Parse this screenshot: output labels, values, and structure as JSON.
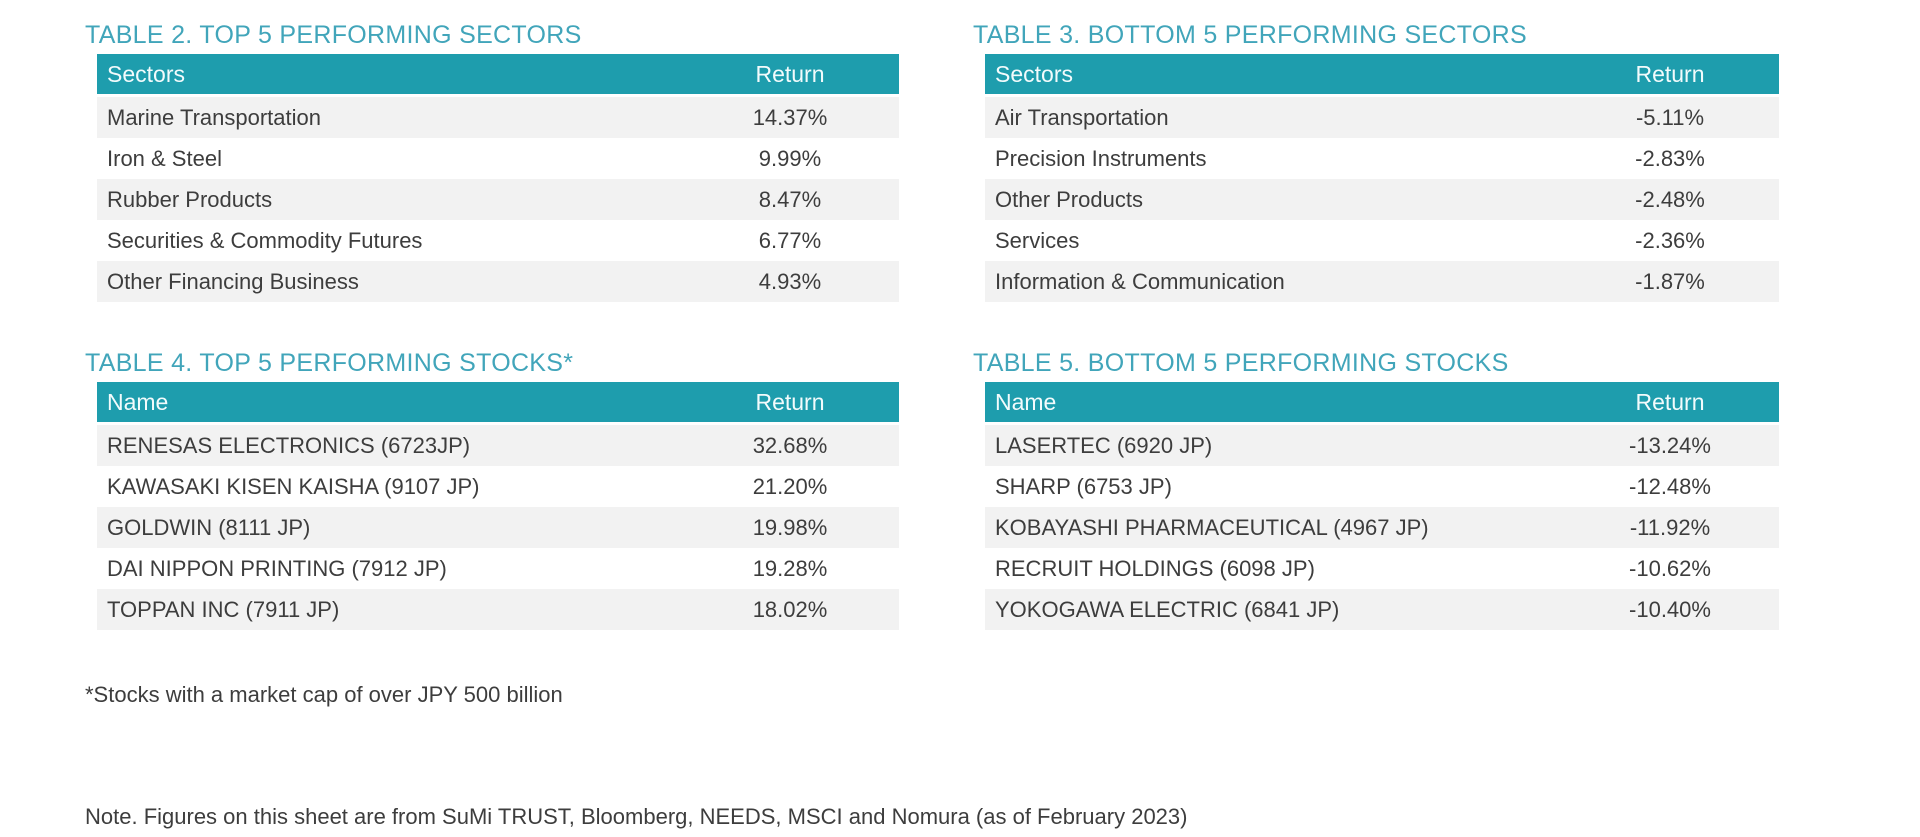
{
  "colors": {
    "header_bg": "#1E9DAD",
    "title": "#41A5BA",
    "row_alt": "#F2F2F2",
    "text": "#3D3D3D"
  },
  "tables": [
    {
      "title": "TABLE 2. TOP 5 PERFORMING SECTORS",
      "name_header": "Sectors",
      "return_header": "Return",
      "rows": [
        {
          "name": "Marine Transportation",
          "value": "14.37%"
        },
        {
          "name": "Iron & Steel",
          "value": "9.99%"
        },
        {
          "name": "Rubber Products",
          "value": "8.47%"
        },
        {
          "name": "Securities & Commodity Futures",
          "value": "6.77%"
        },
        {
          "name": "Other Financing Business",
          "value": "4.93%"
        }
      ]
    },
    {
      "title": "TABLE 3. BOTTOM 5 PERFORMING SECTORS",
      "name_header": "Sectors",
      "return_header": "Return",
      "rows": [
        {
          "name": "Air Transportation",
          "value": "-5.11%"
        },
        {
          "name": "Precision Instruments",
          "value": "-2.83%"
        },
        {
          "name": "Other Products",
          "value": "-2.48%"
        },
        {
          "name": "Services",
          "value": "-2.36%"
        },
        {
          "name": "Information & Communication",
          "value": "-1.87%"
        }
      ]
    },
    {
      "title": "TABLE 4. TOP 5 PERFORMING STOCKS*",
      "name_header": "Name",
      "return_header": "Return",
      "rows": [
        {
          "name": "RENESAS ELECTRONICS (6723JP)",
          "value": "32.68%"
        },
        {
          "name": "KAWASAKI KISEN KAISHA (9107 JP)",
          "value": "21.20%"
        },
        {
          "name": "GOLDWIN (8111 JP)",
          "value": "19.98%"
        },
        {
          "name": "DAI NIPPON PRINTING (7912 JP)",
          "value": "19.28%"
        },
        {
          "name": "TOPPAN INC (7911 JP)",
          "value": "18.02%"
        }
      ]
    },
    {
      "title": "TABLE 5. BOTTOM 5 PERFORMING STOCKS",
      "name_header": "Name",
      "return_header": "Return",
      "rows": [
        {
          "name": "LASERTEC (6920 JP)",
          "value": "-13.24%"
        },
        {
          "name": "SHARP (6753 JP)",
          "value": "-12.48%"
        },
        {
          "name": "KOBAYASHI PHARMACEUTICAL (4967 JP)",
          "value": "-11.92%"
        },
        {
          "name": "RECRUIT HOLDINGS (6098 JP)",
          "value": "-10.62%"
        },
        {
          "name": "YOKOGAWA ELECTRIC (6841 JP)",
          "value": "-10.40%"
        }
      ]
    }
  ],
  "footnote": "*Stocks with a market cap of over JPY 500 billion",
  "source_note": "Note. Figures on this sheet are from SuMi TRUST, Bloomberg, NEEDS, MSCI and Nomura (as of February 2023)"
}
